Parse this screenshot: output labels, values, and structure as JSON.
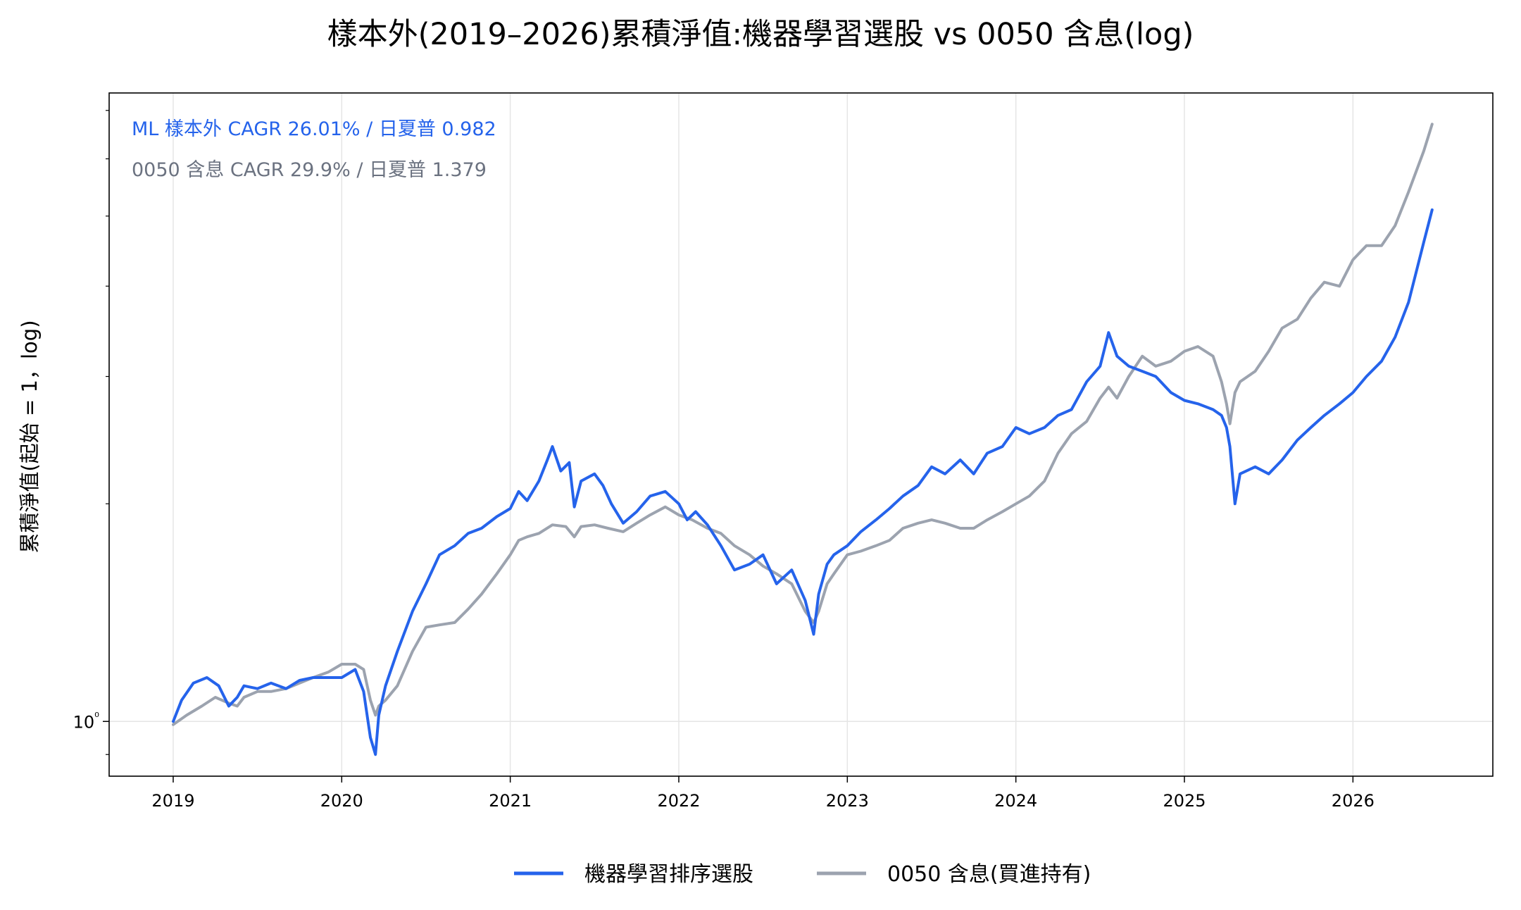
{
  "title": "樣本外(2019–2026)累積淨值:機器學習選股 vs 0050 含息(log)",
  "ylabel": "累積淨值(起始 = 1，log)",
  "annotations": [
    {
      "text": "ML 樣本外 CAGR 26.01% / 日夏普 0.982",
      "color": "#2563eb"
    },
    {
      "text": "0050 含息 CAGR 29.9% / 日夏普 1.379",
      "color": "#6b7280"
    }
  ],
  "legend": {
    "placement": "bottom-center",
    "items": [
      {
        "label": "機器學習排序選股",
        "color": "#2563eb"
      },
      {
        "label": "0050 含息(買進持有)",
        "color": "#9ca3af"
      }
    ]
  },
  "chart_data": {
    "type": "line",
    "title": "樣本外(2019–2026)累積淨值:機器學習選股 vs 0050 含息(log)",
    "xlabel": "",
    "ylabel": "累積淨值(起始 = 1，log)",
    "yscale": "log",
    "grid": true,
    "xlim": [
      2018.62,
      2026.83
    ],
    "ylim": [
      0.84,
      7.4
    ],
    "xticks": [
      2019,
      2020,
      2021,
      2022,
      2023,
      2024,
      2025,
      2026
    ],
    "xtick_labels": [
      "2019",
      "2020",
      "2021",
      "2022",
      "2023",
      "2024",
      "2025",
      "2026"
    ],
    "yticks": [
      1
    ],
    "ytick_labels": [
      "10⁰"
    ],
    "series": [
      {
        "name": "機器學習排序選股",
        "color": "#2563eb",
        "x": [
          2019.0,
          2019.05,
          2019.12,
          2019.2,
          2019.27,
          2019.33,
          2019.38,
          2019.42,
          2019.5,
          2019.58,
          2019.67,
          2019.75,
          2019.83,
          2019.92,
          2020.0,
          2020.08,
          2020.13,
          2020.17,
          2020.2,
          2020.22,
          2020.26,
          2020.33,
          2020.42,
          2020.5,
          2020.58,
          2020.67,
          2020.75,
          2020.83,
          2020.92,
          2021.0,
          2021.05,
          2021.1,
          2021.17,
          2021.22,
          2021.25,
          2021.3,
          2021.35,
          2021.38,
          2021.42,
          2021.5,
          2021.55,
          2021.6,
          2021.67,
          2021.75,
          2021.83,
          2021.92,
          2022.0,
          2022.05,
          2022.1,
          2022.17,
          2022.25,
          2022.33,
          2022.42,
          2022.5,
          2022.58,
          2022.67,
          2022.75,
          2022.8,
          2022.83,
          2022.88,
          2022.92,
          2023.0,
          2023.08,
          2023.17,
          2023.25,
          2023.33,
          2023.42,
          2023.5,
          2023.58,
          2023.67,
          2023.75,
          2023.83,
          2023.92,
          2024.0,
          2024.08,
          2024.17,
          2024.25,
          2024.33,
          2024.42,
          2024.5,
          2024.55,
          2024.6,
          2024.67,
          2024.75,
          2024.83,
          2024.92,
          2025.0,
          2025.08,
          2025.17,
          2025.22,
          2025.25,
          2025.27,
          2025.3,
          2025.33,
          2025.42,
          2025.5,
          2025.58,
          2025.67,
          2025.75,
          2025.83,
          2025.92,
          2026.0,
          2026.08,
          2026.17,
          2026.25,
          2026.33,
          2026.42,
          2026.47
        ],
        "values": [
          1.0,
          1.07,
          1.13,
          1.15,
          1.12,
          1.05,
          1.08,
          1.12,
          1.11,
          1.13,
          1.11,
          1.14,
          1.15,
          1.15,
          1.15,
          1.18,
          1.1,
          0.95,
          0.9,
          1.02,
          1.12,
          1.25,
          1.42,
          1.55,
          1.7,
          1.75,
          1.82,
          1.85,
          1.92,
          1.97,
          2.08,
          2.02,
          2.15,
          2.3,
          2.4,
          2.22,
          2.28,
          1.98,
          2.15,
          2.2,
          2.12,
          2.0,
          1.88,
          1.95,
          2.05,
          2.08,
          2.0,
          1.9,
          1.95,
          1.87,
          1.75,
          1.62,
          1.65,
          1.7,
          1.55,
          1.62,
          1.47,
          1.32,
          1.5,
          1.65,
          1.7,
          1.75,
          1.83,
          1.9,
          1.97,
          2.05,
          2.12,
          2.25,
          2.2,
          2.3,
          2.2,
          2.35,
          2.4,
          2.55,
          2.5,
          2.55,
          2.65,
          2.7,
          2.95,
          3.1,
          3.45,
          3.2,
          3.1,
          3.05,
          3.0,
          2.85,
          2.78,
          2.75,
          2.7,
          2.65,
          2.55,
          2.4,
          2.0,
          2.2,
          2.25,
          2.2,
          2.3,
          2.45,
          2.55,
          2.65,
          2.75,
          2.85,
          3.0,
          3.15,
          3.4,
          3.8,
          4.6,
          5.1
        ]
      },
      {
        "name": "0050 含息(買進持有)",
        "color": "#9ca3af",
        "x": [
          2019.0,
          2019.08,
          2019.17,
          2019.25,
          2019.33,
          2019.38,
          2019.42,
          2019.5,
          2019.58,
          2019.67,
          2019.75,
          2019.83,
          2019.92,
          2020.0,
          2020.08,
          2020.13,
          2020.17,
          2020.2,
          2020.22,
          2020.26,
          2020.33,
          2020.42,
          2020.5,
          2020.58,
          2020.67,
          2020.75,
          2020.83,
          2020.92,
          2021.0,
          2021.05,
          2021.1,
          2021.17,
          2021.25,
          2021.33,
          2021.38,
          2021.42,
          2021.5,
          2021.58,
          2021.67,
          2021.75,
          2021.83,
          2021.92,
          2022.0,
          2022.08,
          2022.17,
          2022.25,
          2022.33,
          2022.42,
          2022.5,
          2022.58,
          2022.67,
          2022.75,
          2022.8,
          2022.83,
          2022.88,
          2022.92,
          2023.0,
          2023.08,
          2023.17,
          2023.25,
          2023.33,
          2023.42,
          2023.5,
          2023.58,
          2023.67,
          2023.75,
          2023.83,
          2023.92,
          2024.0,
          2024.08,
          2024.17,
          2024.25,
          2024.33,
          2024.42,
          2024.5,
          2024.55,
          2024.6,
          2024.67,
          2024.75,
          2024.83,
          2024.92,
          2025.0,
          2025.08,
          2025.17,
          2025.22,
          2025.25,
          2025.27,
          2025.3,
          2025.33,
          2025.42,
          2025.5,
          2025.58,
          2025.67,
          2025.75,
          2025.83,
          2025.92,
          2026.0,
          2026.08,
          2026.17,
          2026.25,
          2026.33,
          2026.42,
          2026.47
        ],
        "values": [
          0.99,
          1.02,
          1.05,
          1.08,
          1.06,
          1.05,
          1.08,
          1.1,
          1.1,
          1.11,
          1.13,
          1.15,
          1.17,
          1.2,
          1.2,
          1.18,
          1.07,
          1.02,
          1.05,
          1.07,
          1.12,
          1.25,
          1.35,
          1.36,
          1.37,
          1.43,
          1.5,
          1.6,
          1.7,
          1.78,
          1.8,
          1.82,
          1.87,
          1.86,
          1.8,
          1.86,
          1.87,
          1.85,
          1.83,
          1.88,
          1.93,
          1.98,
          1.93,
          1.9,
          1.85,
          1.82,
          1.75,
          1.7,
          1.64,
          1.6,
          1.55,
          1.42,
          1.37,
          1.42,
          1.55,
          1.6,
          1.7,
          1.72,
          1.75,
          1.78,
          1.85,
          1.88,
          1.9,
          1.88,
          1.85,
          1.85,
          1.9,
          1.95,
          2.0,
          2.05,
          2.15,
          2.35,
          2.5,
          2.6,
          2.8,
          2.9,
          2.8,
          3.0,
          3.2,
          3.1,
          3.15,
          3.25,
          3.3,
          3.2,
          2.95,
          2.75,
          2.58,
          2.85,
          2.95,
          3.05,
          3.25,
          3.5,
          3.6,
          3.85,
          4.05,
          4.0,
          4.35,
          4.55,
          4.55,
          4.85,
          5.4,
          6.15,
          6.7
        ]
      }
    ]
  }
}
